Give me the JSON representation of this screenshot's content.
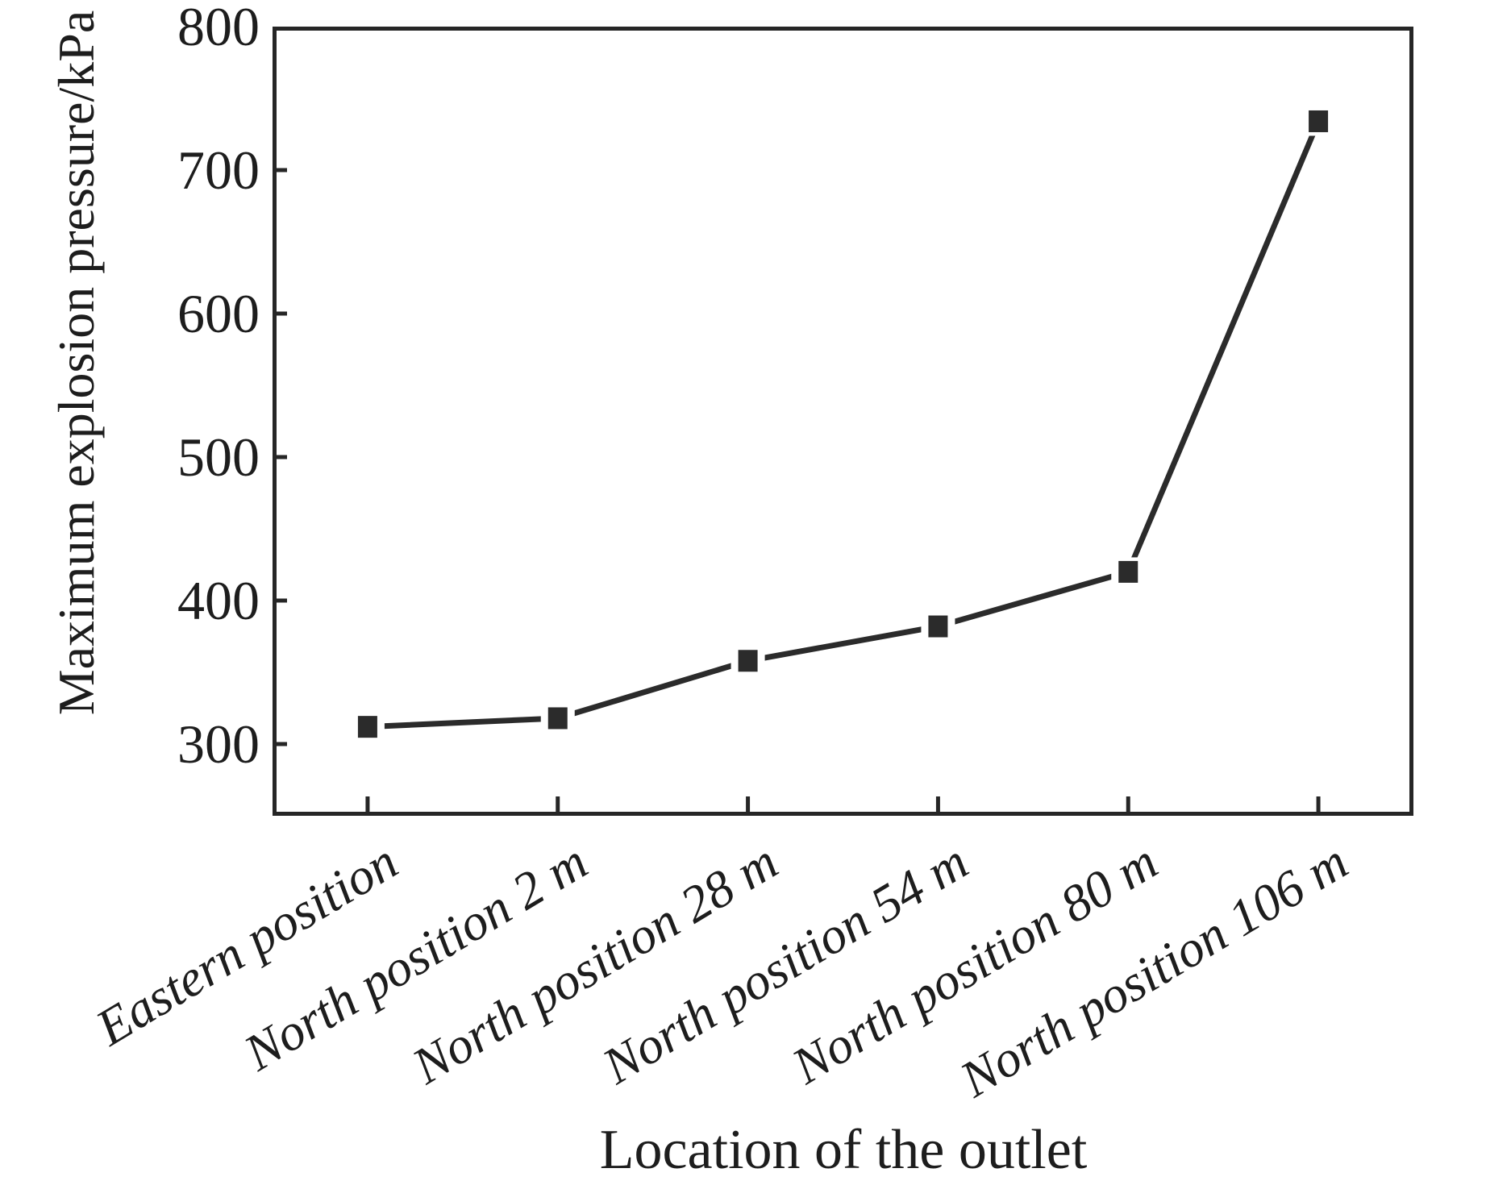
{
  "figure": {
    "background": "#ffffff"
  },
  "chart_data": {
    "type": "line",
    "categories": [
      "Eastern position",
      "North position 2 m",
      "North position 28 m",
      "North position 54 m",
      "North position 80 m",
      "North position 106 m"
    ],
    "values": [
      312,
      318,
      358,
      382,
      420,
      734
    ],
    "title": "",
    "xlabel": "Location of the outlet",
    "ylabel": "Maximum explosion pressure/kPa",
    "ylim": [
      250,
      800
    ],
    "yticks": [
      300,
      400,
      500,
      600,
      700,
      800
    ],
    "grid": false,
    "legend": "none",
    "marker": "filled-square",
    "line_color": "#2b2b2b",
    "axis_color": "#262626",
    "text_color": "#1d1d1d"
  }
}
